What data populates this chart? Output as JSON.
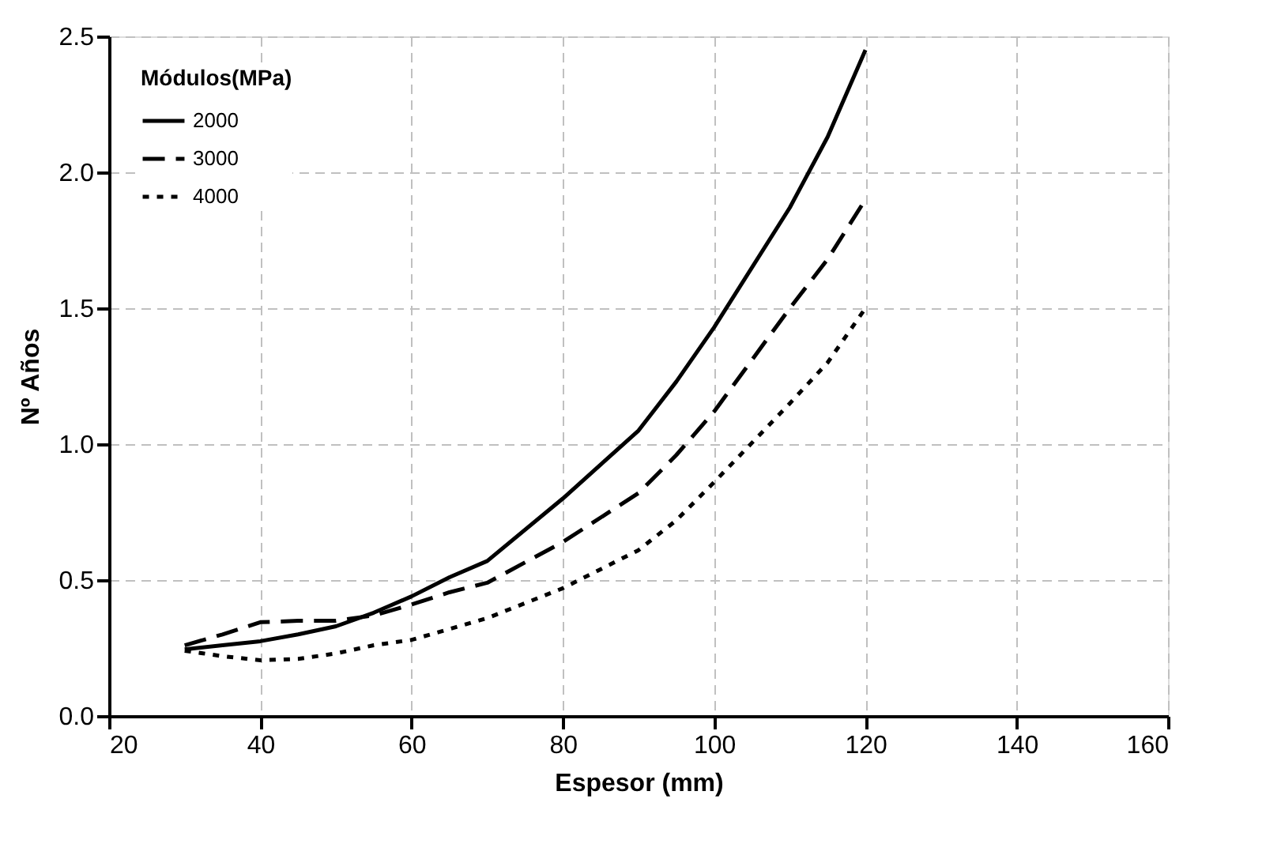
{
  "chart_data": {
    "type": "line",
    "xlabel": "Espesor (mm)",
    "ylabel": "Nº Años",
    "legend_title": "Módulos(MPa)",
    "legend": "top left",
    "grid": true,
    "marker": "none",
    "xlim": [
      20,
      160
    ],
    "xticks": [
      20,
      40,
      60,
      80,
      100,
      120,
      140,
      160
    ],
    "ylim": [
      0,
      2.5
    ],
    "yticks": [
      {
        "value": 0,
        "label": "0.0"
      },
      0.5,
      {
        "value": 1,
        "label": "1.0"
      },
      1.5,
      {
        "value": 2,
        "label": "2.0"
      },
      2.5
    ],
    "x": [
      30,
      35,
      40,
      45,
      50,
      55,
      60,
      65,
      70,
      80,
      90,
      95,
      100,
      110,
      115,
      120
    ],
    "series": [
      {
        "name": "2000",
        "color": "#000000",
        "line_style": "solid",
        "values": [
          0.245,
          0.26,
          0.275,
          0.3,
          0.33,
          0.38,
          0.44,
          0.51,
          0.57,
          0.8,
          1.05,
          1.23,
          1.43,
          1.87,
          2.13,
          2.45
        ]
      },
      {
        "name": "3000",
        "color": "#000000",
        "line_style": "dashed",
        "values": [
          0.26,
          0.3,
          0.345,
          0.35,
          0.35,
          0.37,
          0.41,
          0.455,
          0.49,
          0.64,
          0.82,
          0.96,
          1.12,
          1.5,
          1.68,
          1.9
        ]
      },
      {
        "name": "4000",
        "color": "#000000",
        "line_style": "dotted",
        "values": [
          0.24,
          0.22,
          0.205,
          0.21,
          0.23,
          0.26,
          0.28,
          0.32,
          0.36,
          0.47,
          0.61,
          0.72,
          0.86,
          1.15,
          1.3,
          1.5
        ]
      }
    ]
  }
}
